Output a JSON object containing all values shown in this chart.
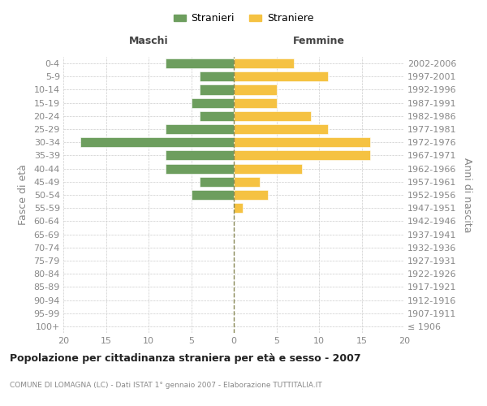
{
  "age_groups": [
    "100+",
    "95-99",
    "90-94",
    "85-89",
    "80-84",
    "75-79",
    "70-74",
    "65-69",
    "60-64",
    "55-59",
    "50-54",
    "45-49",
    "40-44",
    "35-39",
    "30-34",
    "25-29",
    "20-24",
    "15-19",
    "10-14",
    "5-9",
    "0-4"
  ],
  "birth_years": [
    "≤ 1906",
    "1907-1911",
    "1912-1916",
    "1917-1921",
    "1922-1926",
    "1927-1931",
    "1932-1936",
    "1937-1941",
    "1942-1946",
    "1947-1951",
    "1952-1956",
    "1957-1961",
    "1962-1966",
    "1967-1971",
    "1972-1976",
    "1977-1981",
    "1982-1986",
    "1987-1991",
    "1992-1996",
    "1997-2001",
    "2002-2006"
  ],
  "maschi": [
    0,
    0,
    0,
    0,
    0,
    0,
    0,
    0,
    0,
    0,
    5,
    4,
    8,
    8,
    18,
    8,
    4,
    5,
    4,
    4,
    8
  ],
  "femmine": [
    0,
    0,
    0,
    0,
    0,
    0,
    0,
    0,
    0,
    1,
    4,
    3,
    8,
    16,
    16,
    11,
    9,
    5,
    5,
    11,
    7
  ],
  "maschi_color": "#6d9e5e",
  "femmine_color": "#f5c242",
  "title": "Popolazione per cittadinanza straniera per età e sesso - 2007",
  "subtitle": "COMUNE DI LOMAGNA (LC) - Dati ISTAT 1° gennaio 2007 - Elaborazione TUTTITALIA.IT",
  "legend_maschi": "Stranieri",
  "legend_femmine": "Straniere",
  "label_maschi": "Maschi",
  "label_femmine": "Femmine",
  "ylabel_left": "Fasce di età",
  "ylabel_right": "Anni di nascita",
  "xlim": 20,
  "background_color": "#ffffff",
  "grid_color": "#cccccc",
  "text_color": "#888888",
  "title_color": "#222222"
}
